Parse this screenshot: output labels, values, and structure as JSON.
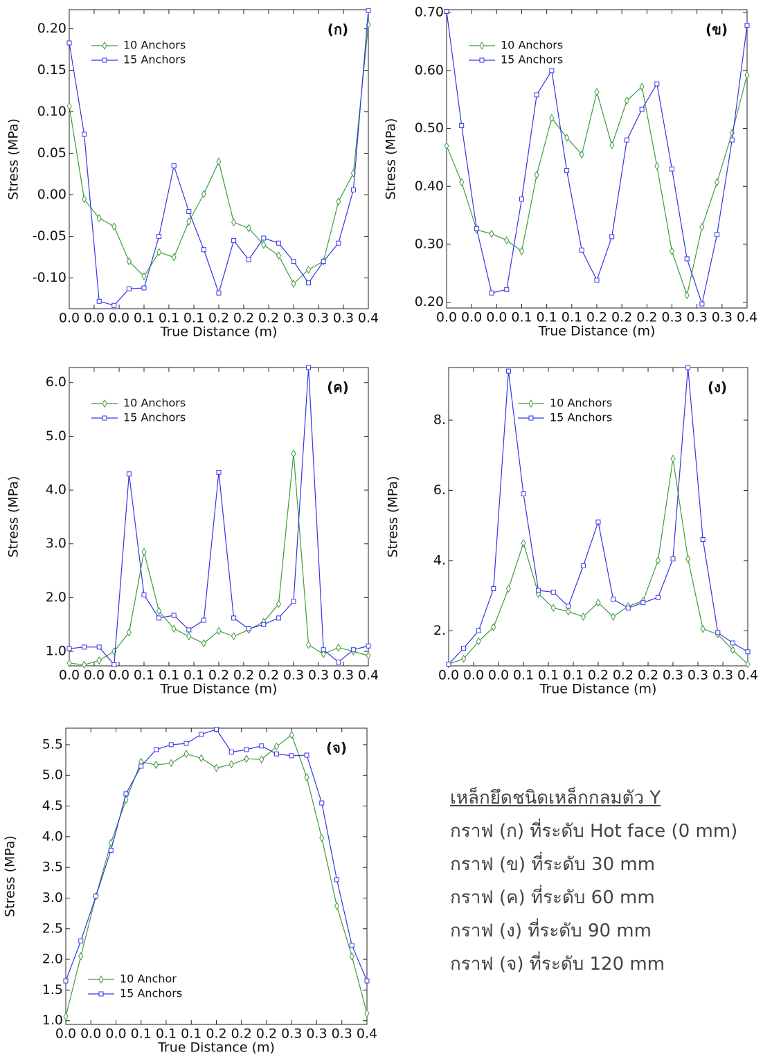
{
  "chart_data": [
    {
      "type": "line",
      "label": "(ก)",
      "xlabel": "True Distance (m)",
      "ylabel": "Stress (MPa)",
      "legend": "upper left",
      "x": [
        0,
        0.02,
        0.04,
        0.06,
        0.08,
        0.1,
        0.12,
        0.14,
        0.16,
        0.18,
        0.2,
        0.22,
        0.24,
        0.26,
        0.28,
        0.3,
        0.32,
        0.34,
        0.36,
        0.38,
        0.4
      ],
      "xlim": [
        0,
        0.4
      ],
      "xticks": [
        {
          "value": 0,
          "label": "0.0"
        },
        {
          "value": 0.0333,
          "label": "0.0"
        },
        {
          "value": 0.0667,
          "label": "0.0"
        },
        {
          "value": 0.1,
          "label": "0.1"
        },
        {
          "value": 0.1333,
          "label": "0.1"
        },
        {
          "value": 0.1667,
          "label": "0.1"
        },
        {
          "value": 0.2,
          "label": "0.2"
        },
        {
          "value": 0.2333,
          "label": "0.2"
        },
        {
          "value": 0.2667,
          "label": "0.2"
        },
        {
          "value": 0.3,
          "label": "0.3"
        },
        {
          "value": 0.3333,
          "label": "0.3"
        },
        {
          "value": 0.3667,
          "label": "0.3"
        },
        {
          "value": 0.4,
          "label": "0.4"
        }
      ],
      "ylim": [
        -0.137,
        0.223
      ],
      "yticks": [
        {
          "value": -0.1,
          "label": "-0.10"
        },
        -0.05,
        {
          "value": 0,
          "label": "0.00"
        },
        0.05,
        {
          "value": 0.1,
          "label": "0.10"
        },
        0.15,
        {
          "value": 0.2,
          "label": "0.20"
        }
      ],
      "series": [
        {
          "name": "10 Anchors",
          "color": "#3c9c3c",
          "marker": "diamond",
          "values": [
            0.107,
            -0.005,
            -0.028,
            -0.038,
            -0.08,
            -0.098,
            -0.069,
            -0.075,
            -0.032,
            0.001,
            0.04,
            -0.033,
            -0.04,
            -0.06,
            -0.073,
            -0.107,
            -0.09,
            -0.08,
            -0.008,
            0.026,
            0.205
          ]
        },
        {
          "name": "15 Anchors",
          "color": "#3434e6",
          "marker": "square",
          "values": [
            0.183,
            0.073,
            -0.128,
            -0.133,
            -0.113,
            -0.112,
            -0.05,
            0.035,
            -0.02,
            -0.066,
            -0.118,
            -0.055,
            -0.078,
            -0.052,
            -0.058,
            -0.08,
            -0.106,
            -0.08,
            -0.058,
            0.006,
            0.222
          ]
        }
      ]
    },
    {
      "type": "line",
      "label": "(ข)",
      "xlabel": "True Distance (m)",
      "ylabel": "Stress (MPa)",
      "legend": "upper left",
      "x": [
        0,
        0.02,
        0.04,
        0.06,
        0.08,
        0.1,
        0.12,
        0.14,
        0.16,
        0.18,
        0.2,
        0.22,
        0.24,
        0.26,
        0.28,
        0.3,
        0.32,
        0.34,
        0.36,
        0.38,
        0.4
      ],
      "xlim": [
        0,
        0.4
      ],
      "xticks": [
        {
          "value": 0,
          "label": "0.0"
        },
        {
          "value": 0.0333,
          "label": "0.0"
        },
        {
          "value": 0.0667,
          "label": "0.0"
        },
        {
          "value": 0.1,
          "label": "0.1"
        },
        {
          "value": 0.1333,
          "label": "0.1"
        },
        {
          "value": 0.1667,
          "label": "0.1"
        },
        {
          "value": 0.2,
          "label": "0.2"
        },
        {
          "value": 0.2333,
          "label": "0.2"
        },
        {
          "value": 0.2667,
          "label": "0.2"
        },
        {
          "value": 0.3,
          "label": "0.3"
        },
        {
          "value": 0.3333,
          "label": "0.3"
        },
        {
          "value": 0.3667,
          "label": "0.3"
        },
        {
          "value": 0.4,
          "label": "0.4"
        }
      ],
      "ylim": [
        0.19,
        0.705
      ],
      "yticks": [
        {
          "value": 0.2,
          "label": "0.20"
        },
        {
          "value": 0.3,
          "label": "0.30"
        },
        {
          "value": 0.4,
          "label": "0.40"
        },
        {
          "value": 0.5,
          "label": "0.50"
        },
        {
          "value": 0.6,
          "label": "0.60"
        },
        {
          "value": 0.7,
          "label": "0.70"
        }
      ],
      "series": [
        {
          "name": "10 Anchors",
          "color": "#3c9c3c",
          "marker": "diamond",
          "values": [
            0.47,
            0.407,
            0.325,
            0.318,
            0.307,
            0.288,
            0.42,
            0.518,
            0.484,
            0.455,
            0.563,
            0.471,
            0.548,
            0.572,
            0.435,
            0.288,
            0.212,
            0.33,
            0.407,
            0.492,
            0.592
          ]
        },
        {
          "name": "15 Anchors",
          "color": "#3434e6",
          "marker": "square",
          "values": [
            0.702,
            0.505,
            0.327,
            0.216,
            0.222,
            0.378,
            0.558,
            0.6,
            0.427,
            0.29,
            0.238,
            0.313,
            0.48,
            0.533,
            0.577,
            0.43,
            0.275,
            0.197,
            0.317,
            0.48,
            0.678
          ]
        }
      ]
    },
    {
      "type": "line",
      "label": "(ค)",
      "xlabel": "True Distance (m)",
      "ylabel": "Stress (MPa)",
      "legend": "upper left",
      "x": [
        0,
        0.02,
        0.04,
        0.06,
        0.08,
        0.1,
        0.12,
        0.14,
        0.16,
        0.18,
        0.2,
        0.22,
        0.24,
        0.26,
        0.28,
        0.3,
        0.32,
        0.34,
        0.36,
        0.38,
        0.4
      ],
      "xlim": [
        0,
        0.4
      ],
      "xticks": [
        {
          "value": 0,
          "label": "0.0"
        },
        {
          "value": 0.0333,
          "label": "0.0"
        },
        {
          "value": 0.0667,
          "label": "0.0"
        },
        {
          "value": 0.1,
          "label": "0.1"
        },
        {
          "value": 0.1333,
          "label": "0.1"
        },
        {
          "value": 0.1667,
          "label": "0.1"
        },
        {
          "value": 0.2,
          "label": "0.2"
        },
        {
          "value": 0.2333,
          "label": "0.2"
        },
        {
          "value": 0.2667,
          "label": "0.2"
        },
        {
          "value": 0.3,
          "label": "0.3"
        },
        {
          "value": 0.3333,
          "label": "0.3"
        },
        {
          "value": 0.3667,
          "label": "0.3"
        },
        {
          "value": 0.4,
          "label": "0.4"
        }
      ],
      "ylim": [
        0.73,
        6.28
      ],
      "yticks": [
        {
          "value": 1,
          "label": "1.0"
        },
        {
          "value": 2,
          "label": "2.0"
        },
        {
          "value": 3,
          "label": "3.0"
        },
        {
          "value": 4,
          "label": "4.0"
        },
        {
          "value": 5,
          "label": "5.0"
        },
        {
          "value": 6,
          "label": "6.0"
        }
      ],
      "series": [
        {
          "name": "10 Anchors",
          "color": "#3c9c3c",
          "marker": "diamond",
          "values": [
            0.78,
            0.75,
            0.83,
            1.0,
            1.35,
            2.85,
            1.75,
            1.42,
            1.28,
            1.15,
            1.38,
            1.28,
            1.4,
            1.55,
            1.88,
            4.68,
            1.12,
            0.95,
            1.07,
            1.0,
            0.92
          ]
        },
        {
          "name": "15 Anchors",
          "color": "#3434e6",
          "marker": "square",
          "values": [
            1.05,
            1.08,
            1.08,
            0.75,
            4.3,
            2.05,
            1.62,
            1.67,
            1.4,
            1.58,
            4.33,
            1.62,
            1.42,
            1.5,
            1.62,
            1.93,
            6.28,
            1.03,
            0.8,
            1.03,
            1.1
          ]
        }
      ]
    },
    {
      "type": "line",
      "label": "(ง)",
      "xlabel": "True Distance (m)",
      "ylabel": "Stress (MPa)",
      "legend": "upper center",
      "x": [
        0,
        0.02,
        0.04,
        0.06,
        0.08,
        0.1,
        0.12,
        0.14,
        0.16,
        0.18,
        0.2,
        0.22,
        0.24,
        0.26,
        0.28,
        0.3,
        0.32,
        0.34,
        0.36,
        0.38,
        0.4
      ],
      "xlim": [
        0,
        0.4
      ],
      "xticks": [
        {
          "value": 0,
          "label": "0.0"
        },
        {
          "value": 0.0333,
          "label": "0.0"
        },
        {
          "value": 0.0667,
          "label": "0.0"
        },
        {
          "value": 0.1,
          "label": "0.1"
        },
        {
          "value": 0.1333,
          "label": "0.1"
        },
        {
          "value": 0.1667,
          "label": "0.1"
        },
        {
          "value": 0.2,
          "label": "0.2"
        },
        {
          "value": 0.2333,
          "label": "0.2"
        },
        {
          "value": 0.2667,
          "label": "0.2"
        },
        {
          "value": 0.3,
          "label": "0.3"
        },
        {
          "value": 0.3333,
          "label": "0.3"
        },
        {
          "value": 0.3667,
          "label": "0.3"
        },
        {
          "value": 0.4,
          "label": "0.4"
        }
      ],
      "ylim": [
        1.0,
        9.5
      ],
      "yticks": [
        {
          "value": 2,
          "label": "2."
        },
        {
          "value": 4,
          "label": "4."
        },
        {
          "value": 6,
          "label": "6."
        },
        {
          "value": 8,
          "label": "8."
        }
      ],
      "series": [
        {
          "name": "10 Anchors",
          "color": "#3c9c3c",
          "marker": "diamond",
          "values": [
            1.05,
            1.2,
            1.7,
            2.1,
            3.2,
            4.5,
            3.05,
            2.65,
            2.55,
            2.4,
            2.8,
            2.4,
            2.7,
            2.85,
            4.0,
            6.9,
            4.05,
            2.05,
            1.9,
            1.45,
            1.05
          ]
        },
        {
          "name": "15 Anchors",
          "color": "#3434e6",
          "marker": "square",
          "values": [
            1.05,
            1.5,
            2.0,
            3.2,
            9.4,
            5.9,
            3.15,
            3.1,
            2.7,
            3.85,
            5.1,
            2.9,
            2.65,
            2.8,
            2.95,
            4.05,
            9.5,
            4.6,
            1.95,
            1.65,
            1.4
          ]
        }
      ]
    },
    {
      "type": "line",
      "label": "(จ)",
      "xlabel": "True Distance (m)",
      "ylabel": "Stress (MPa)",
      "legend": "lower left",
      "x": [
        0,
        0.02,
        0.04,
        0.06,
        0.08,
        0.1,
        0.12,
        0.14,
        0.16,
        0.18,
        0.2,
        0.22,
        0.24,
        0.26,
        0.28,
        0.3,
        0.32,
        0.34,
        0.36,
        0.38,
        0.4
      ],
      "xlim": [
        0,
        0.4
      ],
      "xticks": [
        {
          "value": 0,
          "label": "0.0"
        },
        {
          "value": 0.0333,
          "label": "0.0"
        },
        {
          "value": 0.0667,
          "label": "0.0"
        },
        {
          "value": 0.1,
          "label": "0.1"
        },
        {
          "value": 0.1333,
          "label": "0.1"
        },
        {
          "value": 0.1667,
          "label": "0.1"
        },
        {
          "value": 0.2,
          "label": "0.2"
        },
        {
          "value": 0.2333,
          "label": "0.2"
        },
        {
          "value": 0.2667,
          "label": "0.2"
        },
        {
          "value": 0.3,
          "label": "0.3"
        },
        {
          "value": 0.3333,
          "label": "0.3"
        },
        {
          "value": 0.3667,
          "label": "0.3"
        },
        {
          "value": 0.4,
          "label": "0.4"
        }
      ],
      "ylim": [
        0.94,
        5.77
      ],
      "yticks": [
        {
          "value": 1,
          "label": "1.0"
        },
        1.5,
        {
          "value": 2,
          "label": "2.0"
        },
        2.5,
        {
          "value": 3,
          "label": "3.0"
        },
        3.5,
        {
          "value": 4,
          "label": "4.0"
        },
        4.5,
        {
          "value": 5,
          "label": "5.0"
        },
        5.5
      ],
      "series": [
        {
          "name": "10 Anchor",
          "color": "#3c9c3c",
          "marker": "diamond",
          "values": [
            1.07,
            2.05,
            3.03,
            3.9,
            4.6,
            5.22,
            5.17,
            5.2,
            5.35,
            5.28,
            5.12,
            5.18,
            5.27,
            5.26,
            5.47,
            5.66,
            4.97,
            3.98,
            2.87,
            2.05,
            1.12
          ]
        },
        {
          "name": "15 Anchors",
          "color": "#3434e6",
          "marker": "square",
          "values": [
            1.65,
            2.3,
            3.03,
            3.78,
            4.7,
            5.15,
            5.42,
            5.5,
            5.52,
            5.67,
            5.75,
            5.38,
            5.42,
            5.48,
            5.35,
            5.32,
            5.33,
            4.55,
            3.3,
            2.23,
            1.65
          ]
        }
      ]
    }
  ],
  "text_block": {
    "heading": "เหล็กยึดชนิดเหล็กกลมตัว Y",
    "lines": [
      "กราฟ (ก) ที่ระดับ Hot face (0 mm)",
      "กราฟ (ข) ที่ระดับ 30 mm",
      "กราฟ (ค) ที่ระดับ 60 mm",
      "กราฟ (ง) ที่ระดับ 90 mm",
      "กราฟ (จ) ที่ระดับ 120 mm"
    ]
  }
}
